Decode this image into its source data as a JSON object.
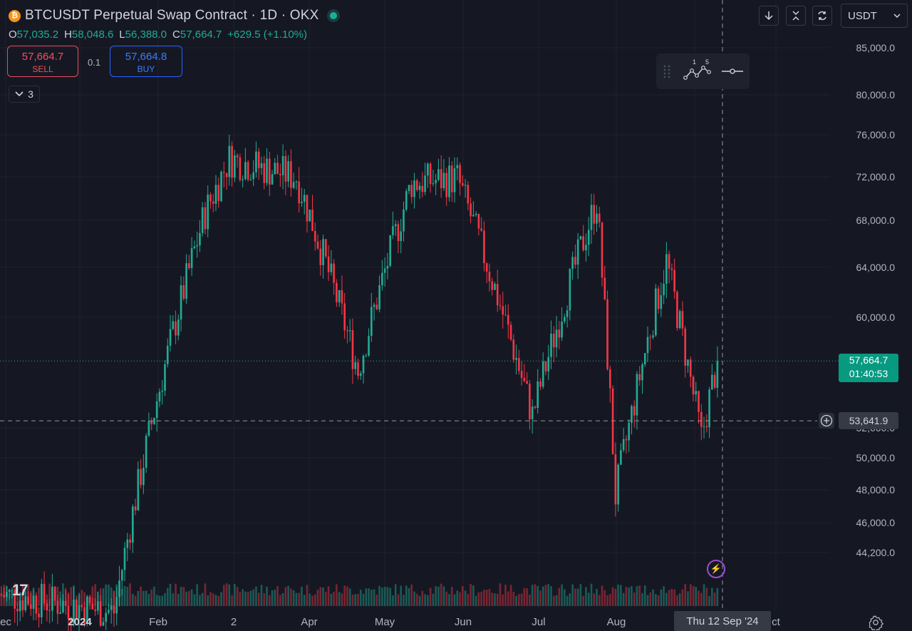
{
  "header": {
    "title": "BTCUSDT Perpetual Swap Contract · 1D · OKX",
    "coin_icon": "bitcoin-icon",
    "open_label": "O",
    "open": "57,035.2",
    "high_label": "H",
    "high": "58,048.6",
    "low_label": "L",
    "low": "56,388.0",
    "close_label": "C",
    "close": "57,664.7",
    "change": "+629.5 (+1.10%)"
  },
  "trade": {
    "sell_price": "57,664.7",
    "sell_label": "SELL",
    "spread": "0.1",
    "buy_price": "57,664.8",
    "buy_label": "BUY"
  },
  "indicators_count": "3",
  "toolbar": {
    "currency": "USDT",
    "toolbox_badge_1": "1",
    "toolbox_badge_2": "5"
  },
  "price_axis": {
    "labels": [
      "85,000.0",
      "80,000.0",
      "76,000.0",
      "72,000.0",
      "68,000.0",
      "64,000.0",
      "60,000.0",
      "52,000.0",
      "50,000.0",
      "48,000.0",
      "46,000.0",
      "44,200.0"
    ],
    "current_price": "57,664.7",
    "countdown": "01:40:53",
    "crosshair_price": "53,641.9"
  },
  "time_axis": {
    "labels": [
      "ec",
      "2024",
      "Feb",
      "2",
      "Apr",
      "May",
      "Jun",
      "Jul",
      "Aug",
      "ct"
    ],
    "crosshair_date": "Thu 12 Sep '24"
  },
  "colors": {
    "up": "#22ab94",
    "down": "#f23645",
    "background": "#151823"
  },
  "chart_data": {
    "type": "candlestick",
    "instrument": "BTCUSDT",
    "timeframe": "1D",
    "y_scale": "log",
    "ylim": [
      42900,
      86500
    ],
    "points": [
      {
        "date": "2024-01-31",
        "price": 42600
      },
      {
        "date": "2024-03-05",
        "price": 69000
      },
      {
        "date": "2024-03-14",
        "price": 73600
      },
      {
        "date": "2024-04-08",
        "price": 72000
      },
      {
        "date": "2024-05-01",
        "price": 57000
      },
      {
        "date": "2024-05-21",
        "price": 71500
      },
      {
        "date": "2024-06-07",
        "price": 71900
      },
      {
        "date": "2024-07-05",
        "price": 54000
      },
      {
        "date": "2024-07-29",
        "price": 70000
      },
      {
        "date": "2024-08-05",
        "price": 49000
      },
      {
        "date": "2024-08-24",
        "price": 65000
      },
      {
        "date": "2024-09-06",
        "price": 52550
      },
      {
        "date": "2024-09-12",
        "price": 57664.7
      }
    ]
  }
}
